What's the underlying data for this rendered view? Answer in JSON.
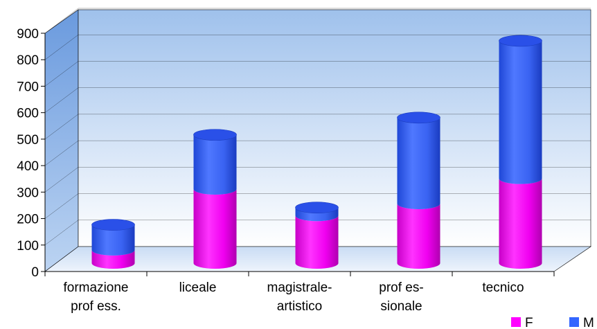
{
  "chart_data": {
    "type": "bar",
    "stacked": true,
    "style": "3d-cylinder",
    "title": "",
    "xlabel": "",
    "ylabel": "",
    "ylim": [
      0,
      900
    ],
    "yticks": [
      0,
      100,
      200,
      300,
      400,
      500,
      600,
      700,
      800,
      900
    ],
    "grid": true,
    "legend_position": "bottom-right",
    "categories": [
      [
        "formazione",
        "prof ess."
      ],
      [
        "liceale"
      ],
      [
        "magistrale-",
        "artistico"
      ],
      [
        "prof es-",
        "sionale"
      ],
      [
        "tecnico"
      ]
    ],
    "series": [
      {
        "name": "F",
        "color": "#ff00ff",
        "values": [
          50,
          280,
          180,
          225,
          320
        ]
      },
      {
        "name": "M",
        "color": "#3366ff",
        "values": [
          95,
          205,
          30,
          325,
          520
        ]
      }
    ],
    "colors": {
      "wall_top": "#a6c6ec",
      "wall_bottom": "#ffffff",
      "side_wall": "#6e9fdc",
      "floor": "#dbe8f8"
    }
  }
}
